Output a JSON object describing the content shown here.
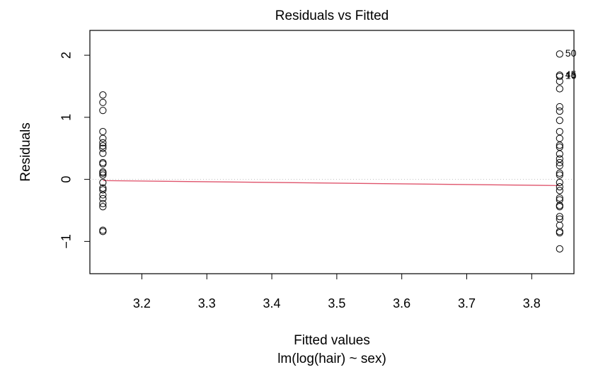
{
  "chart_data": {
    "type": "scatter",
    "title": "Residuals vs Fitted",
    "xlabel": "Fitted values",
    "subtitle": "lm(log(hair) ~ sex)",
    "ylabel": "Residuals",
    "xlim": [
      3.12,
      3.865
    ],
    "ylim": [
      -1.52,
      2.4
    ],
    "x_ticks": [
      3.2,
      3.3,
      3.4,
      3.5,
      3.6,
      3.7,
      3.8
    ],
    "y_ticks": [
      -1,
      0,
      1,
      2
    ],
    "x_tick_labels": [
      "3.2",
      "3.3",
      "3.4",
      "3.5",
      "3.6",
      "3.7",
      "3.8"
    ],
    "y_tick_labels": [
      "−1",
      "0",
      "1",
      "2"
    ],
    "reference_line_y": 0,
    "smooth_color": "#DF536B",
    "reference_color": "#BEBEBE",
    "smooth_line": {
      "x": [
        3.14,
        3.843
      ],
      "y": [
        -0.02,
        -0.1
      ]
    },
    "points": [
      {
        "x": 3.14,
        "y": 1.36
      },
      {
        "x": 3.14,
        "y": 1.24
      },
      {
        "x": 3.14,
        "y": 1.11
      },
      {
        "x": 3.14,
        "y": 0.77
      },
      {
        "x": 3.14,
        "y": 0.66
      },
      {
        "x": 3.14,
        "y": 0.59
      },
      {
        "x": 3.14,
        "y": 0.54
      },
      {
        "x": 3.14,
        "y": 0.5
      },
      {
        "x": 3.14,
        "y": 0.42
      },
      {
        "x": 3.14,
        "y": 0.27
      },
      {
        "x": 3.14,
        "y": 0.25
      },
      {
        "x": 3.14,
        "y": 0.12
      },
      {
        "x": 3.14,
        "y": 0.1
      },
      {
        "x": 3.14,
        "y": 0.07
      },
      {
        "x": 3.14,
        "y": -0.05
      },
      {
        "x": 3.14,
        "y": -0.14
      },
      {
        "x": 3.14,
        "y": -0.17
      },
      {
        "x": 3.14,
        "y": -0.25
      },
      {
        "x": 3.14,
        "y": -0.31
      },
      {
        "x": 3.14,
        "y": -0.39
      },
      {
        "x": 3.14,
        "y": -0.44
      },
      {
        "x": 3.14,
        "y": -0.82
      },
      {
        "x": 3.14,
        "y": -0.84
      },
      {
        "x": 3.843,
        "y": 2.02
      },
      {
        "x": 3.843,
        "y": 1.68
      },
      {
        "x": 3.843,
        "y": 1.66
      },
      {
        "x": 3.843,
        "y": 1.58
      },
      {
        "x": 3.843,
        "y": 1.46
      },
      {
        "x": 3.843,
        "y": 1.17
      },
      {
        "x": 3.843,
        "y": 1.1
      },
      {
        "x": 3.843,
        "y": 0.95
      },
      {
        "x": 3.843,
        "y": 0.77
      },
      {
        "x": 3.843,
        "y": 0.66
      },
      {
        "x": 3.843,
        "y": 0.55
      },
      {
        "x": 3.843,
        "y": 0.52
      },
      {
        "x": 3.843,
        "y": 0.41
      },
      {
        "x": 3.843,
        "y": 0.33
      },
      {
        "x": 3.843,
        "y": 0.27
      },
      {
        "x": 3.843,
        "y": 0.22
      },
      {
        "x": 3.843,
        "y": 0.1
      },
      {
        "x": 3.843,
        "y": 0.07
      },
      {
        "x": 3.843,
        "y": -0.05
      },
      {
        "x": 3.843,
        "y": -0.12
      },
      {
        "x": 3.843,
        "y": -0.18
      },
      {
        "x": 3.843,
        "y": -0.3
      },
      {
        "x": 3.843,
        "y": -0.33
      },
      {
        "x": 3.843,
        "y": -0.42
      },
      {
        "x": 3.843,
        "y": -0.44
      },
      {
        "x": 3.843,
        "y": -0.6
      },
      {
        "x": 3.843,
        "y": -0.64
      },
      {
        "x": 3.843,
        "y": -0.74
      },
      {
        "x": 3.843,
        "y": -0.84
      },
      {
        "x": 3.843,
        "y": -0.86
      },
      {
        "x": 3.843,
        "y": -1.12
      }
    ],
    "point_labels": [
      {
        "text": "50",
        "x": 3.843,
        "y": 2.02
      },
      {
        "text": "45",
        "x": 3.843,
        "y": 1.68
      },
      {
        "text": "16",
        "x": 3.843,
        "y": 1.66
      }
    ]
  }
}
